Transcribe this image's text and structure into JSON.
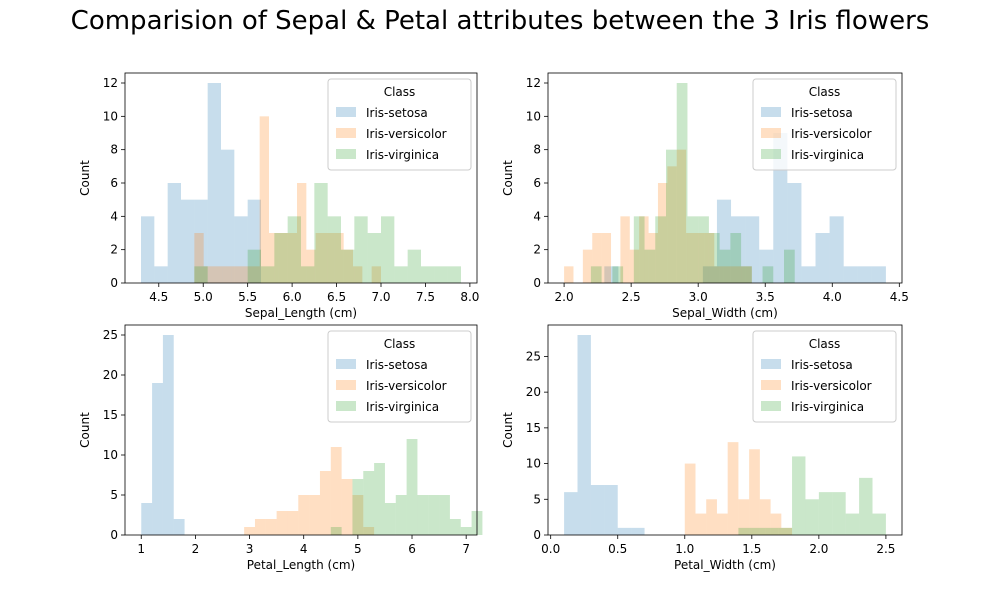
{
  "figure": {
    "suptitle": "Comparision of Sepal & Petal attributes between the 3 Iris flowers"
  },
  "colors": {
    "Iris-setosa": "#1f77b4",
    "Iris-versicolor": "#ff7f0e",
    "Iris-virginica": "#2ca02c",
    "bar_alpha": 0.25
  },
  "chart_data": [
    {
      "type": "bar",
      "subtype": "histogram",
      "xlabel": "Sepal_Length (cm)",
      "ylabel": "Count",
      "xlim": [
        4.12,
        8.08
      ],
      "ylim": [
        0,
        12.6
      ],
      "xticks": [
        4.5,
        5.0,
        5.5,
        6.0,
        6.5,
        7.0,
        7.5,
        8.0
      ],
      "xtick_labels": [
        "4.5",
        "5.0",
        "5.5",
        "6.0",
        "6.5",
        "7.0",
        "7.5",
        "8.0"
      ],
      "yticks": [
        0,
        2,
        4,
        6,
        8,
        10,
        12
      ],
      "legend": {
        "title": "Class",
        "position": "top-right",
        "entries": [
          "Iris-setosa",
          "Iris-versicolor",
          "Iris-virginica"
        ]
      },
      "series": [
        {
          "name": "Iris-setosa",
          "bin_start": 4.3,
          "bin_width": 0.15,
          "counts": [
            4,
            1,
            6,
            5,
            5,
            12,
            8,
            4,
            5,
            0,
            0,
            0,
            0,
            0,
            0,
            0,
            0,
            0,
            0,
            0
          ]
        },
        {
          "name": "Iris-versicolor",
          "bin_start": 4.9,
          "bin_width": 0.105,
          "counts": [
            3,
            1,
            1,
            1,
            1,
            1,
            1,
            10,
            3,
            3,
            3,
            6,
            2,
            3,
            3,
            3,
            2,
            1,
            0,
            1
          ]
        },
        {
          "name": "Iris-virginica",
          "bin_start": 4.9,
          "bin_width": 0.15,
          "counts": [
            1,
            0,
            0,
            0,
            2,
            1,
            3,
            4,
            1,
            6,
            4,
            2,
            4,
            3,
            4,
            1,
            2,
            1,
            1,
            1
          ]
        }
      ]
    },
    {
      "type": "bar",
      "subtype": "histogram",
      "xlabel": "Sepal_Width (cm)",
      "ylabel": "Count",
      "xlim": [
        1.88,
        4.52
      ],
      "ylim": [
        0,
        12.6
      ],
      "xticks": [
        2.0,
        2.5,
        3.0,
        3.5,
        4.0,
        4.5
      ],
      "xtick_labels": [
        "2.0",
        "2.5",
        "3.0",
        "3.5",
        "4.0",
        "4.5"
      ],
      "yticks": [
        0,
        2,
        4,
        6,
        8,
        10,
        12
      ],
      "legend": {
        "title": "Class",
        "position": "top-right",
        "entries": [
          "Iris-setosa",
          "Iris-versicolor",
          "Iris-virginica"
        ]
      },
      "series": [
        {
          "name": "Iris-setosa",
          "bin_start": 2.3,
          "bin_width": 0.105,
          "counts": [
            1,
            0,
            0,
            0,
            0,
            0,
            0,
            1,
            5,
            4,
            4,
            2,
            9,
            6,
            1,
            3,
            4,
            1,
            1,
            1
          ]
        },
        {
          "name": "Iris-versicolor",
          "bin_start": 2.0,
          "bin_width": 0.07,
          "counts": [
            1,
            0,
            2,
            3,
            3,
            0,
            4,
            2,
            4,
            3,
            6,
            7,
            8,
            3,
            3,
            3,
            1,
            1,
            1,
            1
          ]
        },
        {
          "name": "Iris-virginica",
          "bin_start": 2.2,
          "bin_width": 0.08,
          "counts": [
            1,
            0,
            1,
            0,
            4,
            2,
            4,
            8,
            12,
            4,
            4,
            3,
            2,
            3,
            1,
            0,
            1,
            0,
            2,
            0
          ]
        }
      ]
    },
    {
      "type": "bar",
      "subtype": "histogram",
      "xlabel": "Petal_Length (cm)",
      "ylabel": "Count",
      "xlim": [
        0.7,
        7.2
      ],
      "ylim": [
        0,
        26.25
      ],
      "xticks": [
        1,
        2,
        3,
        4,
        5,
        6,
        7
      ],
      "xtick_labels": [
        "1",
        "2",
        "3",
        "4",
        "5",
        "6",
        "7"
      ],
      "yticks": [
        0,
        5,
        10,
        15,
        20,
        25
      ],
      "legend": {
        "title": "Class",
        "position": "top-right",
        "entries": [
          "Iris-setosa",
          "Iris-versicolor",
          "Iris-virginica"
        ]
      },
      "series": [
        {
          "name": "Iris-setosa",
          "bin_start": 1.0,
          "bin_width": 0.2,
          "counts": [
            4,
            19,
            25,
            2
          ]
        },
        {
          "name": "Iris-versicolor",
          "bin_start": 2.9,
          "bin_width": 0.2,
          "counts": [
            1,
            2,
            2,
            3,
            3,
            5,
            5,
            8,
            11,
            7,
            5,
            1
          ]
        },
        {
          "name": "Iris-virginica",
          "bin_start": 4.5,
          "bin_width": 0.2,
          "counts": [
            1,
            0,
            7,
            8,
            9,
            4,
            5,
            12,
            5,
            5,
            5,
            2,
            1,
            3
          ]
        }
      ]
    },
    {
      "type": "bar",
      "subtype": "histogram",
      "xlabel": "Petal_Width (cm)",
      "ylabel": "Count",
      "xlim": [
        -0.02,
        2.62
      ],
      "ylim": [
        0,
        29.4
      ],
      "xticks": [
        0.0,
        0.5,
        1.0,
        1.5,
        2.0,
        2.5
      ],
      "xtick_labels": [
        "0.0",
        "0.5",
        "1.0",
        "1.5",
        "2.0",
        "2.5"
      ],
      "yticks": [
        0,
        5,
        10,
        15,
        20,
        25
      ],
      "legend": {
        "title": "Class",
        "position": "top-right",
        "entries": [
          "Iris-setosa",
          "Iris-versicolor",
          "Iris-virginica"
        ]
      },
      "series": [
        {
          "name": "Iris-setosa",
          "bin_start": 0.1,
          "bin_width": 0.1,
          "counts": [
            6,
            28,
            7,
            7,
            1,
            1
          ]
        },
        {
          "name": "Iris-versicolor",
          "bin_start": 1.0,
          "bin_width": 0.08,
          "counts": [
            10,
            3,
            5,
            3,
            13,
            5,
            12,
            5,
            3,
            1
          ]
        },
        {
          "name": "Iris-virginica",
          "bin_start": 1.4,
          "bin_width": 0.1,
          "counts": [
            1,
            1,
            1,
            1,
            11,
            5,
            6,
            6,
            3,
            8,
            3
          ]
        }
      ]
    }
  ]
}
